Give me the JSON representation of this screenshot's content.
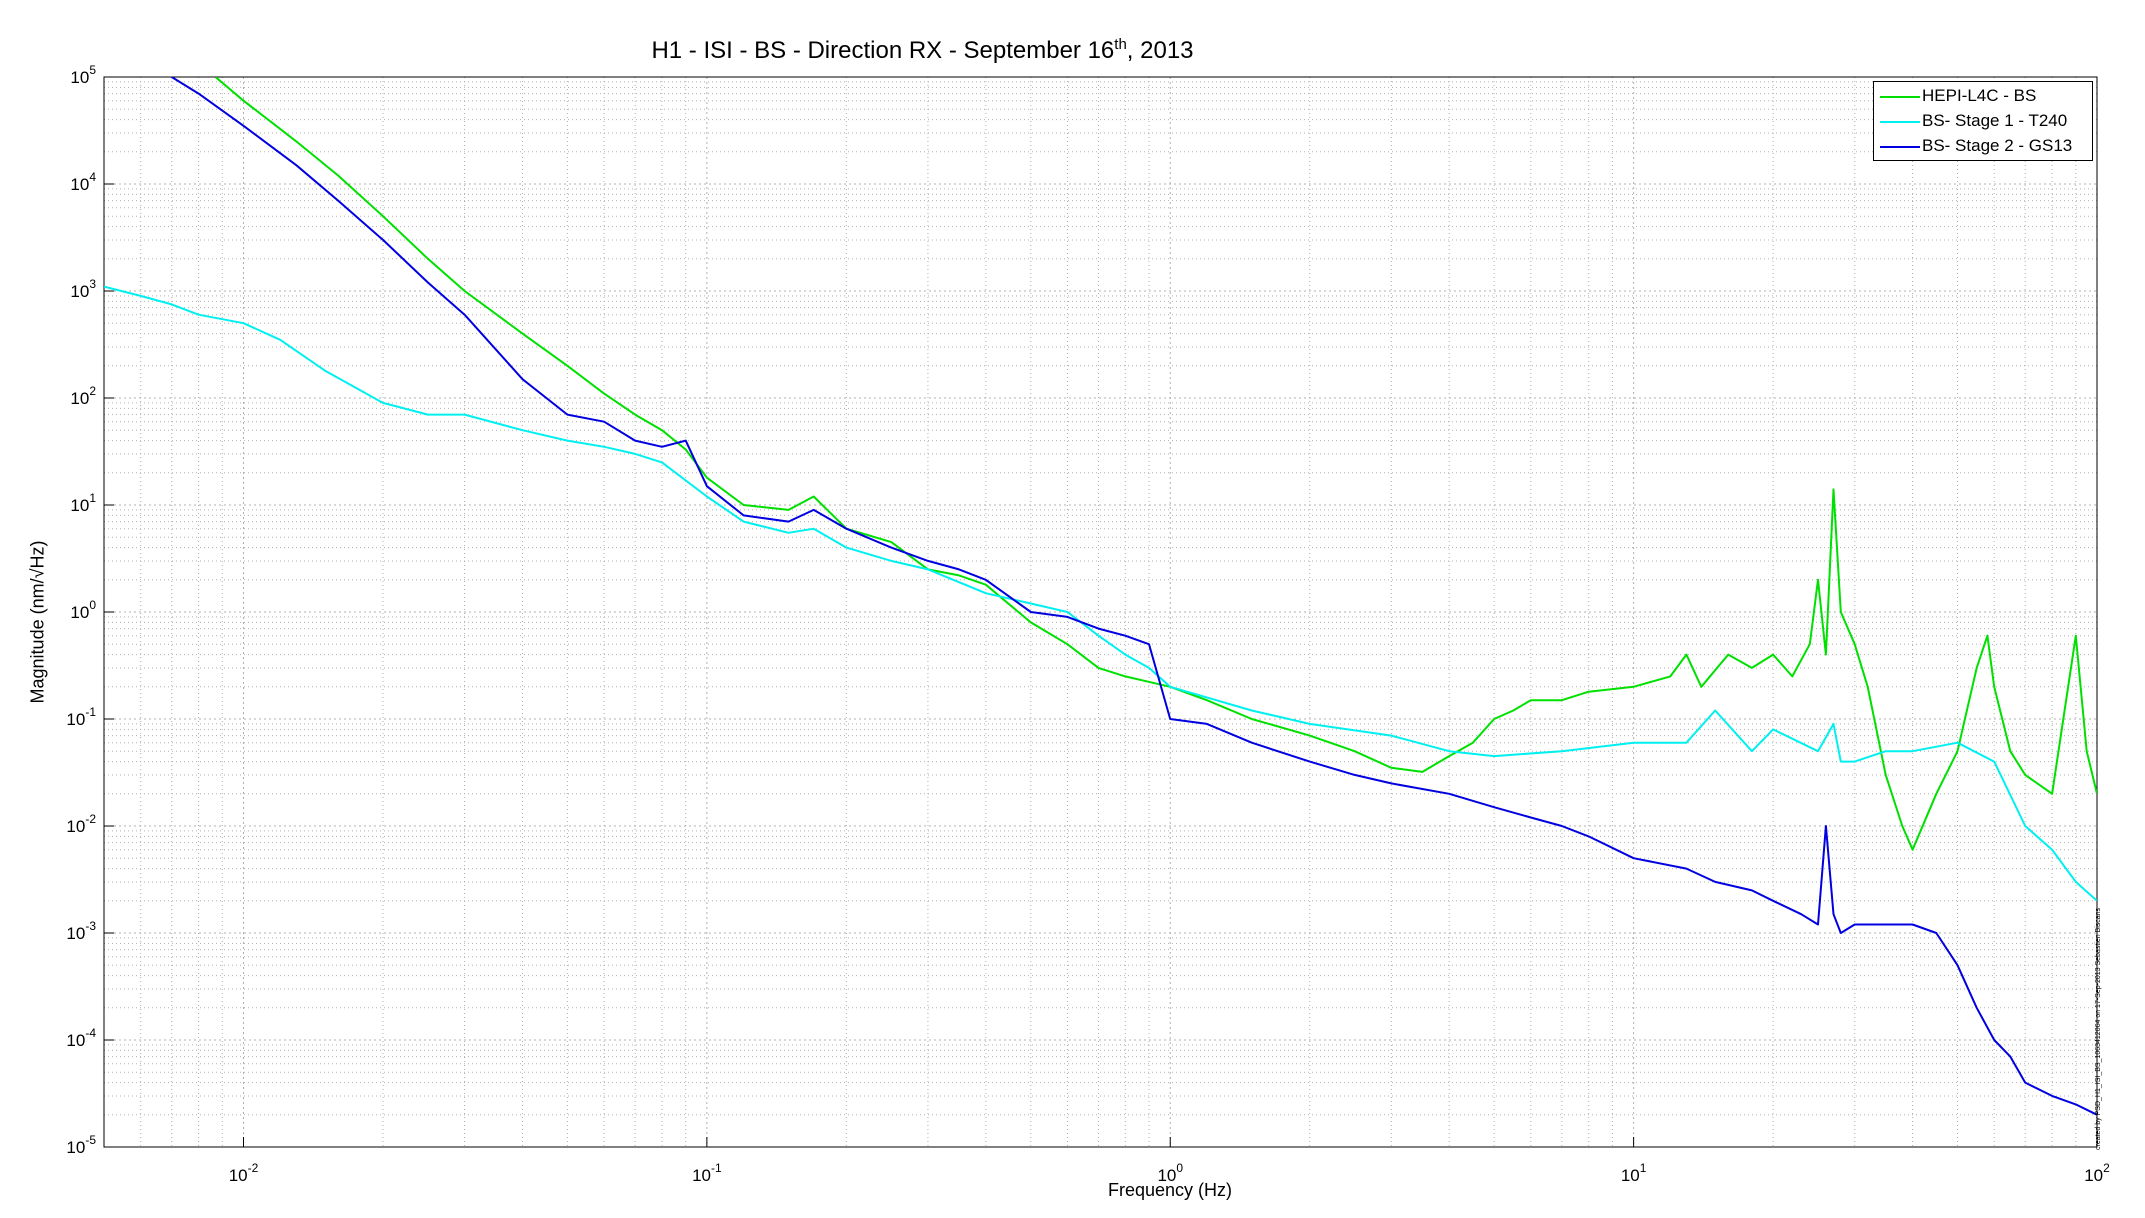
{
  "chart_data": {
    "type": "line",
    "title": {
      "main": "H1 - ISI - BS - Direction RX - September 16",
      "sup": "th",
      "tail": ", 2013"
    },
    "xlabel": "Frequency (Hz)",
    "ylabel": "Magnitude (nm/√Hz)",
    "x_scale": "log",
    "y_scale": "log",
    "xlim": [
      0.005,
      100
    ],
    "ylim": [
      1e-05,
      100000
    ],
    "grid": "on (major and minor)",
    "legend_placement": "top-right",
    "x_ticks": [
      {
        "base": "10",
        "exp": "-2"
      },
      {
        "base": "10",
        "exp": "-1"
      },
      {
        "base": "10",
        "exp": "0"
      },
      {
        "base": "10",
        "exp": "1"
      },
      {
        "base": "10",
        "exp": "2"
      }
    ],
    "y_ticks": [
      {
        "base": "10",
        "exp": "-5"
      },
      {
        "base": "10",
        "exp": "-4"
      },
      {
        "base": "10",
        "exp": "-3"
      },
      {
        "base": "10",
        "exp": "-2"
      },
      {
        "base": "10",
        "exp": "-1"
      },
      {
        "base": "10",
        "exp": "0"
      },
      {
        "base": "10",
        "exp": "1"
      },
      {
        "base": "10",
        "exp": "2"
      },
      {
        "base": "10",
        "exp": "3"
      },
      {
        "base": "10",
        "exp": "4"
      },
      {
        "base": "10",
        "exp": "5"
      }
    ],
    "series": [
      {
        "name": "HEPI-L4C - BS",
        "color": "#00e000",
        "x": [
          0.0087,
          0.01,
          0.013,
          0.016,
          0.02,
          0.025,
          0.03,
          0.04,
          0.05,
          0.06,
          0.07,
          0.08,
          0.09,
          0.1,
          0.12,
          0.15,
          0.17,
          0.2,
          0.25,
          0.3,
          0.35,
          0.4,
          0.5,
          0.6,
          0.7,
          0.8,
          1.0,
          1.2,
          1.5,
          2.0,
          2.5,
          3.0,
          3.5,
          4.0,
          4.5,
          5.0,
          5.5,
          6.0,
          7.0,
          8.0,
          10.0,
          12.0,
          13.0,
          14.0,
          16.0,
          18.0,
          20.0,
          22.0,
          24.0,
          25.0,
          26.0,
          27.0,
          28.0,
          30.0,
          32.0,
          35.0,
          38.0,
          40.0,
          45.0,
          50.0,
          55.0,
          58.0,
          60.0,
          65.0,
          70.0,
          80.0,
          90.0,
          95.0,
          100.0
        ],
        "y": [
          100000,
          60000,
          25000,
          12000,
          5000,
          2000,
          1000,
          400,
          200,
          110,
          70,
          50,
          33,
          18,
          10,
          9,
          12,
          6,
          4.5,
          2.5,
          2.2,
          1.8,
          0.8,
          0.5,
          0.3,
          0.25,
          0.2,
          0.15,
          0.1,
          0.07,
          0.05,
          0.035,
          0.032,
          0.045,
          0.06,
          0.1,
          0.12,
          0.15,
          0.15,
          0.18,
          0.2,
          0.25,
          0.4,
          0.2,
          0.4,
          0.3,
          0.4,
          0.25,
          0.5,
          2.0,
          0.4,
          14.0,
          1.0,
          0.5,
          0.2,
          0.03,
          0.01,
          0.006,
          0.02,
          0.05,
          0.3,
          0.6,
          0.2,
          0.05,
          0.03,
          0.02,
          0.6,
          0.05,
          0.02
        ]
      },
      {
        "name": "BS- Stage 1 - T240",
        "color": "#00f0f0",
        "x": [
          0.005,
          0.006,
          0.007,
          0.008,
          0.01,
          0.012,
          0.015,
          0.02,
          0.025,
          0.03,
          0.04,
          0.05,
          0.06,
          0.07,
          0.08,
          0.1,
          0.12,
          0.15,
          0.17,
          0.2,
          0.25,
          0.3,
          0.4,
          0.5,
          0.6,
          0.7,
          0.8,
          0.9,
          1.0,
          1.5,
          2.0,
          3.0,
          4.0,
          5.0,
          7.0,
          10.0,
          13.0,
          15.0,
          18.0,
          20.0,
          25.0,
          27.0,
          28.0,
          30.0,
          35.0,
          40.0,
          50.0,
          60.0,
          70.0,
          80.0,
          90.0,
          100.0
        ],
        "y": [
          1100,
          900,
          750,
          600,
          500,
          350,
          180,
          90,
          70,
          70,
          50,
          40,
          35,
          30,
          25,
          12,
          7,
          5.5,
          6,
          4,
          3,
          2.5,
          1.5,
          1.2,
          1.0,
          0.6,
          0.4,
          0.3,
          0.2,
          0.12,
          0.09,
          0.07,
          0.05,
          0.045,
          0.05,
          0.06,
          0.06,
          0.12,
          0.05,
          0.08,
          0.05,
          0.09,
          0.04,
          0.04,
          0.05,
          0.05,
          0.06,
          0.04,
          0.01,
          0.006,
          0.003,
          0.002
        ]
      },
      {
        "name": "BS- Stage 2 - GS13",
        "color": "#0000e0",
        "x": [
          0.007,
          0.008,
          0.01,
          0.013,
          0.016,
          0.02,
          0.025,
          0.03,
          0.04,
          0.05,
          0.06,
          0.07,
          0.08,
          0.09,
          0.1,
          0.12,
          0.15,
          0.17,
          0.2,
          0.25,
          0.3,
          0.35,
          0.4,
          0.5,
          0.6,
          0.7,
          0.8,
          0.9,
          1.0,
          1.2,
          1.5,
          2.0,
          2.5,
          3.0,
          4.0,
          5.0,
          6.0,
          7.0,
          8.0,
          10.0,
          13.0,
          15.0,
          18.0,
          20.0,
          23.0,
          25.0,
          26.0,
          27.0,
          28.0,
          30.0,
          35.0,
          40.0,
          45.0,
          50.0,
          55.0,
          60.0,
          65.0,
          70.0,
          80.0,
          90.0,
          100.0
        ],
        "y": [
          100000,
          70000,
          35000,
          15000,
          7000,
          3000,
          1200,
          600,
          150,
          70,
          60,
          40,
          35,
          40,
          15,
          8,
          7,
          9,
          6,
          4,
          3,
          2.5,
          2.0,
          1.0,
          0.9,
          0.7,
          0.6,
          0.5,
          0.1,
          0.09,
          0.06,
          0.04,
          0.03,
          0.025,
          0.02,
          0.015,
          0.012,
          0.01,
          0.008,
          0.005,
          0.004,
          0.003,
          0.0025,
          0.002,
          0.0015,
          0.0012,
          0.01,
          0.0015,
          0.001,
          0.0012,
          0.0012,
          0.0012,
          0.001,
          0.0005,
          0.0002,
          0.0001,
          7e-05,
          4e-05,
          3e-05,
          2.5e-05,
          2e-05
        ]
      }
    ]
  },
  "footnote": "created by PSD_H1_ISI_BS_1063412064 on 17-Sep-2013 Sebastien Biscans"
}
